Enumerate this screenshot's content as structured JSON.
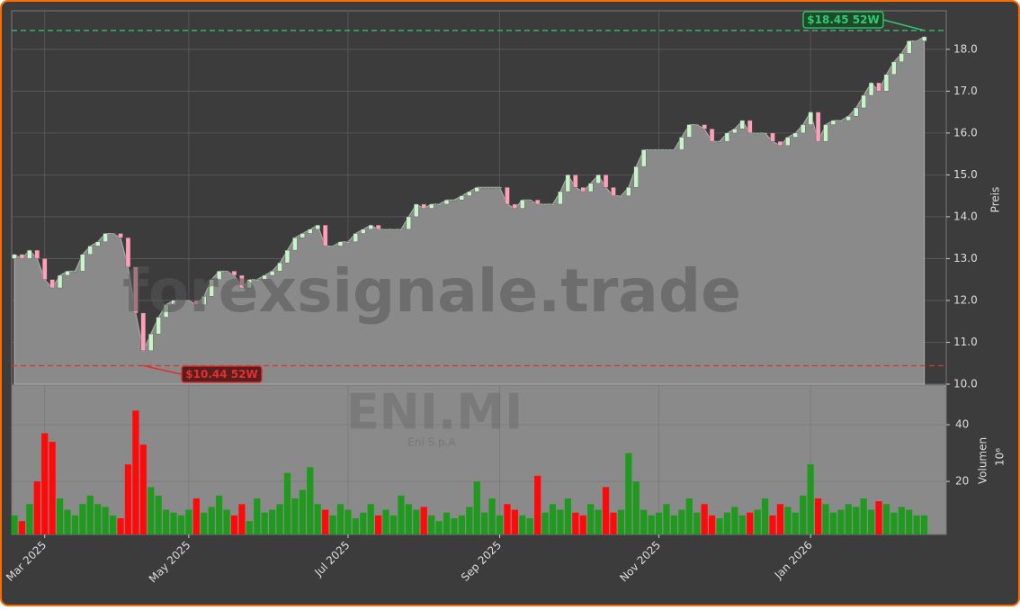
{
  "chart_data": {
    "type": "candlestick",
    "watermark": "forexsignale.trade",
    "symbol": "ENI.MI",
    "company": "Eni S.p.A",
    "ylabel": "Preis",
    "y2label": "Volumen",
    "y2unit": "10⁶",
    "categories": [
      null,
      null,
      null,
      null,
      "Mar 2025",
      null,
      null,
      null,
      null,
      null,
      null,
      null,
      null,
      null,
      null,
      null,
      null,
      null,
      null,
      null,
      null,
      null,
      null,
      "May 2025",
      null,
      null,
      null,
      null,
      null,
      null,
      null,
      null,
      null,
      null,
      null,
      null,
      null,
      null,
      null,
      null,
      null,
      null,
      null,
      null,
      "Jul 2025",
      null,
      null,
      null,
      null,
      null,
      null,
      null,
      null,
      null,
      null,
      null,
      null,
      null,
      null,
      null,
      null,
      null,
      null,
      null,
      "Sep 2025",
      null,
      null,
      null,
      null,
      null,
      null,
      null,
      null,
      null,
      null,
      null,
      null,
      null,
      null,
      null,
      null,
      null,
      null,
      null,
      null,
      "Nov 2025",
      null,
      null,
      null,
      null,
      null,
      null,
      null,
      null,
      null,
      null,
      null,
      null,
      null,
      null,
      null,
      null,
      null,
      null,
      null,
      "Jan 2026",
      null,
      null,
      null,
      null,
      null,
      null,
      null,
      null,
      null,
      null,
      null,
      null,
      null,
      null,
      null
    ],
    "open": [
      13.0,
      13.1,
      13.0,
      13.2,
      13.0,
      12.5,
      12.3,
      12.6,
      12.7,
      12.7,
      13.1,
      13.3,
      13.4,
      13.6,
      13.6,
      13.5,
      12.8,
      11.7,
      10.8,
      11.2,
      11.6,
      11.9,
      12.0,
      12.0,
      12.0,
      11.9,
      12.1,
      12.5,
      12.7,
      12.7,
      12.6,
      12.3,
      12.5,
      12.5,
      12.6,
      12.7,
      12.9,
      13.2,
      13.5,
      13.6,
      13.7,
      13.8,
      13.3,
      13.3,
      13.4,
      13.4,
      13.6,
      13.7,
      13.8,
      13.7,
      13.7,
      13.7,
      13.7,
      14.0,
      14.3,
      14.2,
      14.3,
      14.3,
      14.4,
      14.4,
      14.5,
      14.6,
      14.7,
      14.7,
      14.7,
      14.7,
      14.3,
      14.2,
      14.4,
      14.4,
      14.3,
      14.3,
      14.3,
      14.6,
      15.0,
      14.7,
      14.6,
      14.8,
      15.0,
      14.7,
      14.5,
      14.5,
      14.7,
      15.2,
      15.6,
      15.6,
      15.6,
      15.6,
      15.6,
      15.9,
      16.2,
      16.2,
      16.1,
      15.8,
      15.8,
      16.0,
      16.1,
      16.3,
      16.0,
      16.0,
      16.0,
      15.8,
      15.7,
      15.9,
      16.0,
      16.2,
      16.5,
      15.8,
      16.2,
      16.3,
      16.3,
      16.4,
      16.6,
      16.9,
      17.2,
      17.0,
      17.4,
      17.7,
      17.9,
      18.2,
      18.2
    ],
    "close": [
      13.1,
      13.0,
      13.2,
      13.0,
      12.5,
      12.3,
      12.6,
      12.7,
      12.7,
      13.1,
      13.3,
      13.4,
      13.6,
      13.6,
      13.5,
      12.8,
      11.7,
      10.8,
      11.2,
      11.6,
      11.9,
      12.0,
      12.0,
      12.0,
      11.9,
      12.1,
      12.5,
      12.7,
      12.7,
      12.6,
      12.3,
      12.5,
      12.5,
      12.6,
      12.7,
      12.9,
      13.2,
      13.5,
      13.6,
      13.7,
      13.8,
      13.3,
      13.3,
      13.4,
      13.4,
      13.6,
      13.7,
      13.8,
      13.7,
      13.7,
      13.7,
      13.7,
      14.0,
      14.3,
      14.2,
      14.3,
      14.3,
      14.4,
      14.4,
      14.5,
      14.6,
      14.7,
      14.7,
      14.7,
      14.7,
      14.3,
      14.2,
      14.4,
      14.4,
      14.3,
      14.3,
      14.3,
      14.6,
      15.0,
      14.7,
      14.6,
      14.8,
      15.0,
      14.7,
      14.5,
      14.5,
      14.7,
      15.2,
      15.6,
      15.6,
      15.6,
      15.6,
      15.6,
      15.9,
      16.2,
      16.2,
      16.1,
      15.8,
      15.8,
      16.0,
      16.1,
      16.3,
      16.0,
      16.0,
      16.0,
      15.8,
      15.7,
      15.9,
      16.0,
      16.2,
      16.5,
      15.8,
      16.2,
      16.3,
      16.3,
      16.4,
      16.6,
      16.9,
      17.2,
      17.0,
      17.4,
      17.7,
      17.9,
      18.2,
      18.2,
      18.3
    ],
    "volume": [
      8,
      6,
      12,
      20,
      37,
      34,
      14,
      10,
      8,
      12,
      15,
      12,
      11,
      8,
      7,
      26,
      45,
      33,
      18,
      15,
      10,
      9,
      8,
      10,
      14,
      9,
      11,
      15,
      10,
      8,
      12,
      6,
      14,
      9,
      10,
      12,
      23,
      14,
      17,
      25,
      12,
      10,
      8,
      12,
      10,
      7,
      9,
      12,
      8,
      10,
      8,
      15,
      12,
      10,
      11,
      8,
      6,
      9,
      7,
      8,
      11,
      20,
      9,
      14,
      8,
      12,
      10,
      8,
      7,
      22,
      9,
      12,
      10,
      14,
      9,
      8,
      12,
      10,
      18,
      9,
      10,
      30,
      20,
      10,
      8,
      9,
      12,
      8,
      10,
      14,
      9,
      12,
      8,
      7,
      9,
      11,
      8,
      9,
      10,
      14,
      8,
      12,
      11,
      9,
      15,
      26,
      14,
      12,
      9,
      10,
      12,
      11,
      14,
      10,
      13,
      12,
      9,
      11,
      10,
      8,
      8
    ],
    "up_color": "#1f9a1f",
    "down_color": "#ff0a0a",
    "candle_up_color": "#c8f5c8",
    "candle_down_color": "#ff9fb8",
    "area_color": "#8a8a8a",
    "ylim": [
      10,
      18.92
    ],
    "yticks": [
      {
        "value": 10,
        "label": "10.0"
      },
      {
        "value": 11,
        "label": "11.0"
      },
      {
        "value": 12,
        "label": "12.0"
      },
      {
        "value": 13,
        "label": "13.0"
      },
      {
        "value": 14,
        "label": "14.0"
      },
      {
        "value": 15,
        "label": "15.0"
      },
      {
        "value": 16,
        "label": "16.0"
      },
      {
        "value": 17,
        "label": "17.0"
      },
      {
        "value": 18,
        "label": "18.0"
      }
    ],
    "y2lim": [
      1.3,
      54
    ],
    "y2ticks": [
      20,
      40
    ],
    "grid": true,
    "annotations": [
      {
        "text": "$18.45 52W",
        "value": 18.45,
        "color": "#2ecc71"
      },
      {
        "text": "$10.44 52W",
        "value": 10.44,
        "color": "#e03030"
      }
    ]
  }
}
